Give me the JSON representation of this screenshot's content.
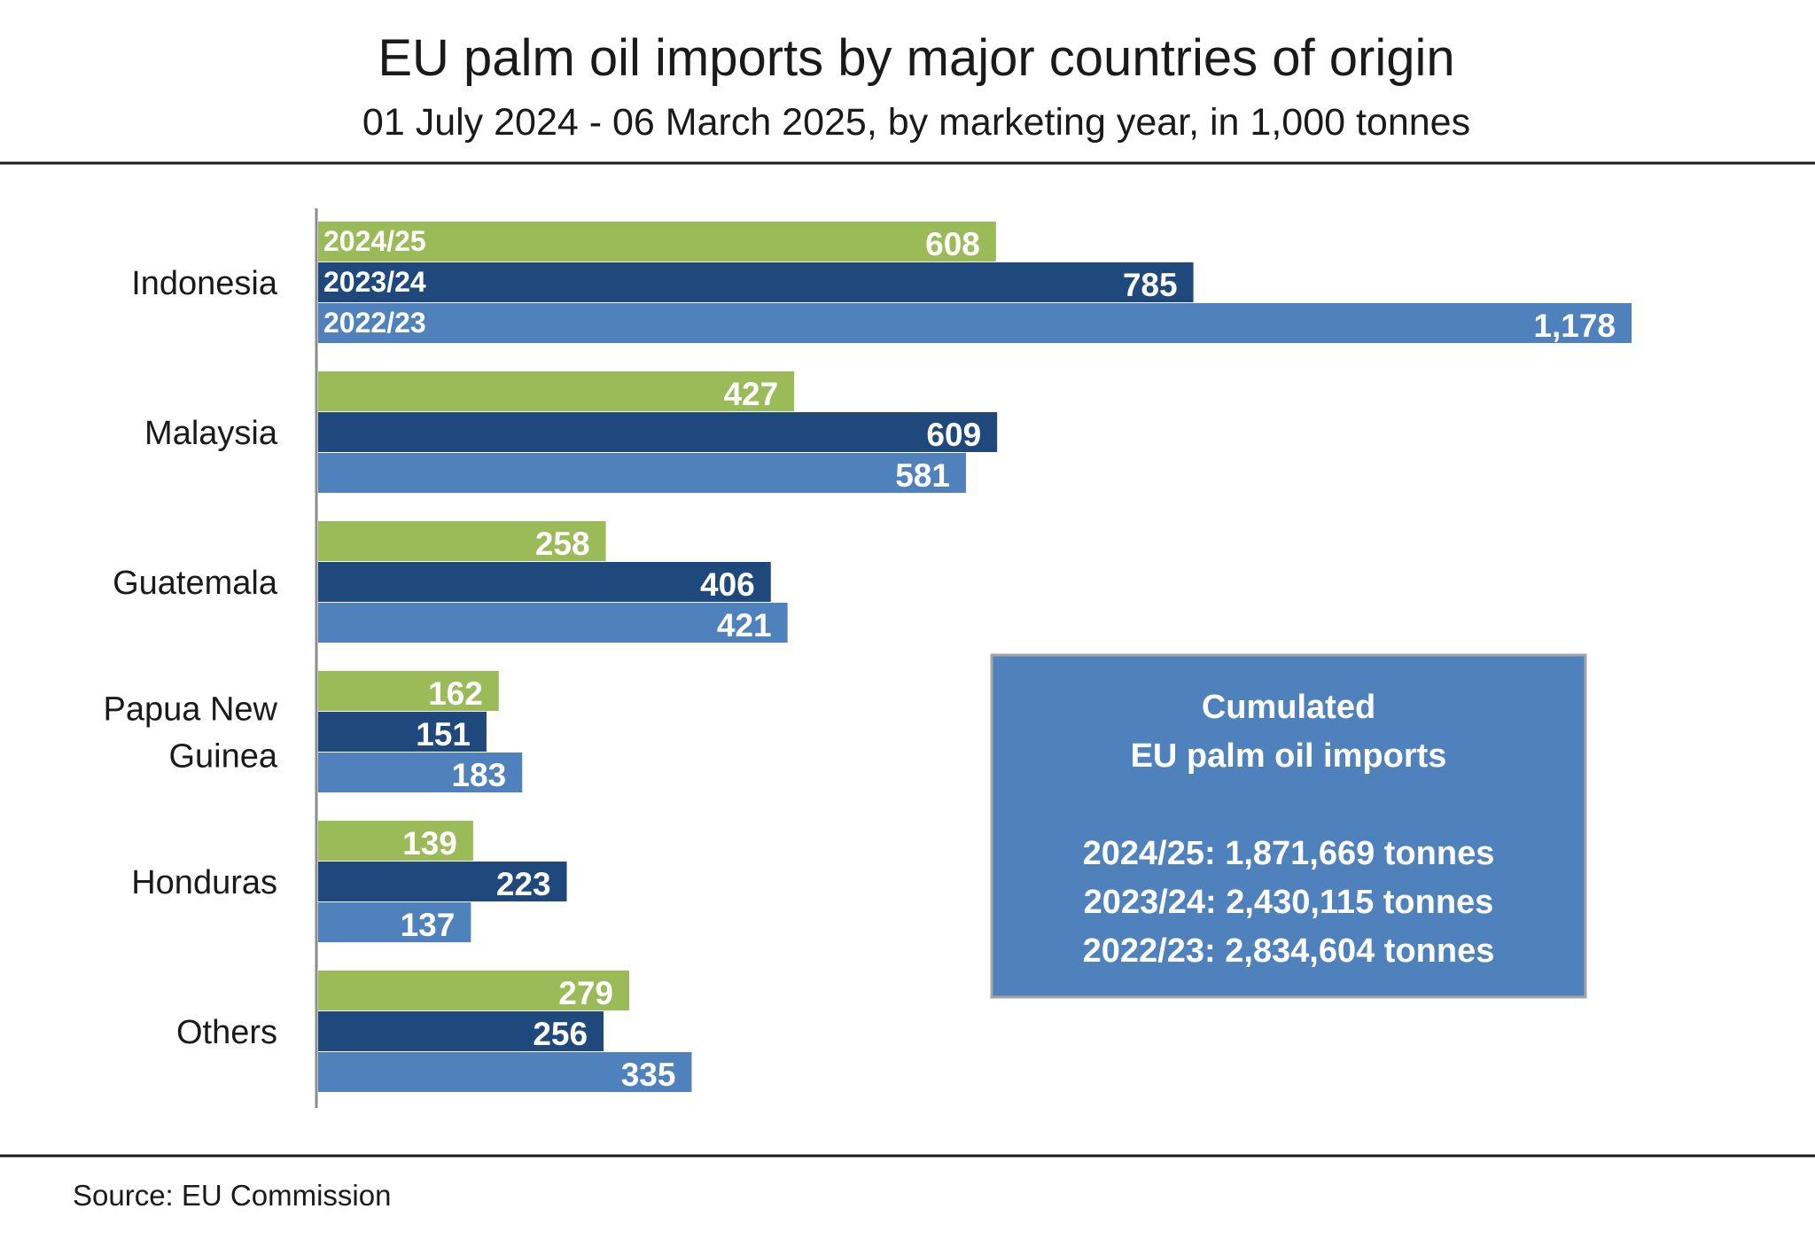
{
  "chart_data": {
    "type": "bar",
    "orientation": "horizontal",
    "title": "EU palm oil imports by major countries of origin",
    "subtitle": "01 July 2024 - 06 March 2025, by marketing year, in 1,000 tonnes",
    "categories": [
      [
        "Indonesia"
      ],
      [
        "Malaysia"
      ],
      [
        "Guatemala"
      ],
      [
        "Papua New",
        "Guinea"
      ],
      [
        "Honduras"
      ],
      [
        "Others"
      ]
    ],
    "series": [
      {
        "name": "2024/25",
        "color": "#9bbb59",
        "values": [
          608,
          427,
          258,
          162,
          139,
          279
        ],
        "labels": [
          "608",
          "427",
          "258",
          "162",
          "139",
          "279"
        ]
      },
      {
        "name": "2023/24",
        "color": "#1f487c",
        "values": [
          785,
          609,
          406,
          151,
          223,
          256
        ],
        "labels": [
          "785",
          "609",
          "406",
          "151",
          "223",
          "256"
        ]
      },
      {
        "name": "2022/23",
        "color": "#4f81bd",
        "values": [
          1178,
          581,
          421,
          183,
          137,
          335
        ],
        "labels": [
          "1,178",
          "581",
          "421",
          "183",
          "137",
          "335"
        ]
      }
    ],
    "xlim": [
      0,
      1178
    ],
    "grid": false,
    "legend": "series names printed inside the first category's bars",
    "annotation_box": {
      "color": "#4f81bd",
      "title_lines": [
        "Cumulated",
        "EU palm oil imports"
      ],
      "lines": [
        "2024/25: 1,871,669 tonnes",
        "2023/24: 2,430,115 tonnes",
        "2022/23: 2,834,604 tonnes"
      ]
    },
    "source": "Source: EU Commission"
  }
}
